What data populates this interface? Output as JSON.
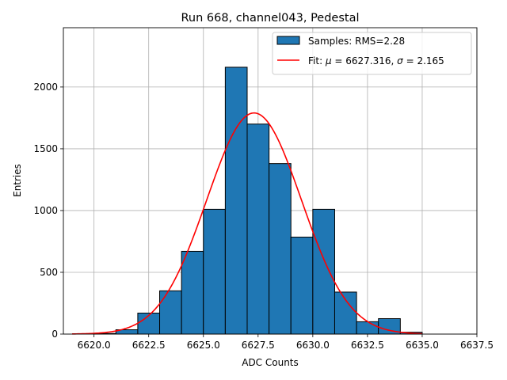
{
  "chart_data": {
    "type": "bar",
    "title": "Run 668, channel043, Pedestal",
    "xlabel": "ADC Counts",
    "ylabel": "Entries",
    "xlim": [
      6618.6,
      6637.5
    ],
    "ylim": [
      0,
      2480
    ],
    "xticks": [
      6620.0,
      6622.5,
      6625.0,
      6627.5,
      6630.0,
      6632.5,
      6635.0,
      6637.5
    ],
    "xtick_labels": [
      "6620.0",
      "6622.5",
      "6625.0",
      "6627.5",
      "6630.0",
      "6632.5",
      "6635.0",
      "6637.5"
    ],
    "yticks": [
      0,
      500,
      1000,
      1500,
      2000
    ],
    "ytick_labels": [
      "0",
      "500",
      "1000",
      "1500",
      "2000"
    ],
    "grid": true,
    "legend_position": "top-right",
    "histogram": {
      "name": "Samples: RMS=2.28",
      "color": "#1f77b4",
      "edge_color": "#000000",
      "bin_edges": [
        6619,
        6620,
        6621,
        6622,
        6623,
        6624,
        6625,
        6626,
        6627,
        6628,
        6629,
        6630,
        6631,
        6632,
        6633,
        6634,
        6635
      ],
      "counts": [
        0,
        5,
        35,
        170,
        350,
        670,
        1010,
        2160,
        1700,
        1380,
        785,
        1010,
        340,
        100,
        125,
        15
      ]
    },
    "fit": {
      "name_prefix": "Fit: ",
      "mu_symbol": "μ",
      "mu_text": " = 6627.316, ",
      "sigma_symbol": "σ",
      "sigma_text": " = 2.165",
      "color": "#ff0000",
      "mu": 6627.316,
      "sigma": 2.165,
      "amplitude": 1790,
      "x_range": [
        6619,
        6635
      ]
    }
  }
}
